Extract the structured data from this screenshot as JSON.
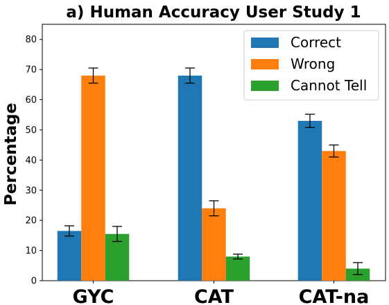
{
  "chart_data": {
    "type": "bar",
    "title": "a) Human Accuracy User Study 1",
    "xlabel": "",
    "ylabel": "Percentage",
    "categories": [
      "GYC",
      "CAT",
      "CAT-na"
    ],
    "ylim": [
      0,
      85
    ],
    "yticks": [
      0,
      10,
      20,
      30,
      40,
      50,
      60,
      70,
      80
    ],
    "grid": false,
    "legend_position": "top-right",
    "series": [
      {
        "name": "Correct",
        "color": "#1f77b4",
        "values": [
          16.5,
          68,
          53
        ],
        "errors": [
          1.7,
          2.5,
          2.2
        ]
      },
      {
        "name": "Wrong",
        "color": "#ff7f0e",
        "values": [
          68,
          24,
          43
        ],
        "errors": [
          2.5,
          2.5,
          2.0
        ]
      },
      {
        "name": "Cannot Tell",
        "color": "#2ca02c",
        "values": [
          15.5,
          8,
          4
        ],
        "errors": [
          2.5,
          0.8,
          2.0
        ]
      }
    ]
  }
}
